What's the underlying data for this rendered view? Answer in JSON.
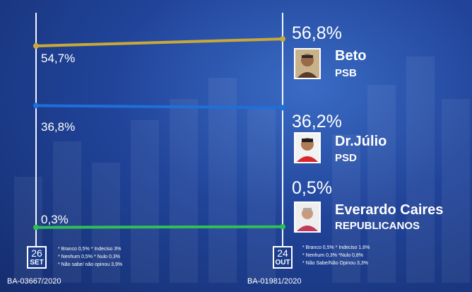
{
  "chart_data": {
    "type": "line",
    "x": [
      "26 SET",
      "24 OUT"
    ],
    "series": [
      {
        "name": "Beto",
        "party": "PSB",
        "values": [
          54.7,
          56.8
        ],
        "labels": [
          "54,7%",
          "56,8%"
        ],
        "color": "#c9a83a"
      },
      {
        "name": "Dr.Júlio",
        "party": "PSD",
        "values": [
          36.8,
          36.2
        ],
        "labels": [
          "36,8%",
          "36,2%"
        ],
        "color": "#1f6fd9"
      },
      {
        "name": "Everardo Caires",
        "party": "REPUBLICANOS",
        "values": [
          0.3,
          0.5
        ],
        "labels": [
          "0,3%",
          "0,5%"
        ],
        "color": "#2fbf5a"
      }
    ]
  },
  "dates": {
    "left": {
      "day": "26",
      "month": "SET",
      "registration": "BA-03667/2020"
    },
    "right": {
      "day": "24",
      "month": "OUT",
      "registration": "BA-01981/2020"
    }
  },
  "notes_left": [
    "* Branco 0,5% * Indeciso 3%",
    "* Nenhum 0,5% * Nulo 0,3%",
    "* Não sabe/ não opinou 3,9%"
  ],
  "notes_right": [
    "* Branco 0,5% * Indeciso 1,6%",
    "* Nenhum 0,3% *Nulo 0,8%",
    "* Não Sabe/Não Opinou 3,3%"
  ],
  "colors": {
    "background": "#21449a",
    "axis": "#f2f6ff"
  }
}
